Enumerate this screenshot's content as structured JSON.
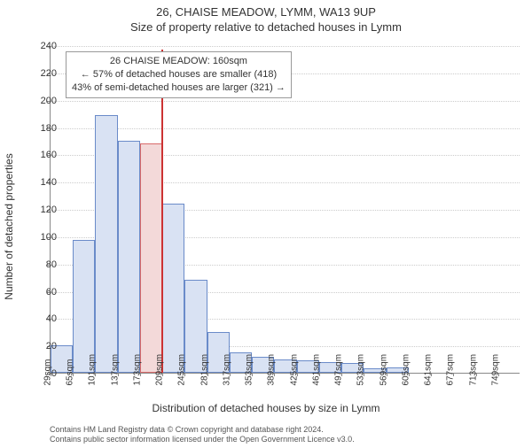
{
  "title_main": "26, CHAISE MEADOW, LYMM, WA13 9UP",
  "title_sub": "Size of property relative to detached houses in Lymm",
  "ylabel": "Number of detached properties",
  "xlabel": "Distribution of detached houses by size in Lymm",
  "footer_line1": "Contains HM Land Registry data © Crown copyright and database right 2024.",
  "footer_line2": "Contains public sector information licensed under the Open Government Licence v3.0.",
  "annotation": {
    "line1": "26 CHAISE MEADOW: 160sqm",
    "line2": "← 57% of detached houses are smaller (418)",
    "line3": "43% of semi-detached houses are larger (321) →"
  },
  "chart": {
    "type": "histogram",
    "ylim": [
      0,
      240
    ],
    "ytick_step": 20,
    "bar_fill": "#d9e2f3",
    "bar_stroke": "#6a8bc9",
    "highlight_fill": "#f3d9d9",
    "highlight_stroke": "#d96a6a",
    "ref_line_color": "#cc3333",
    "grid_color": "#cccccc",
    "background_color": "#ffffff",
    "highlight_index": 4,
    "ref_line_at_bin": 4,
    "x_labels": [
      "29sqm",
      "65sqm",
      "101sqm",
      "137sqm",
      "173sqm",
      "209sqm",
      "245sqm",
      "281sqm",
      "317sqm",
      "353sqm",
      "389sqm",
      "425sqm",
      "461sqm",
      "497sqm",
      "533sqm",
      "569sqm",
      "605sqm",
      "641sqm",
      "677sqm",
      "713sqm",
      "749sqm"
    ],
    "values": [
      20,
      97,
      189,
      170,
      168,
      124,
      68,
      30,
      15,
      12,
      10,
      9,
      8,
      7,
      3,
      4,
      0,
      0,
      0,
      0,
      0
    ]
  }
}
